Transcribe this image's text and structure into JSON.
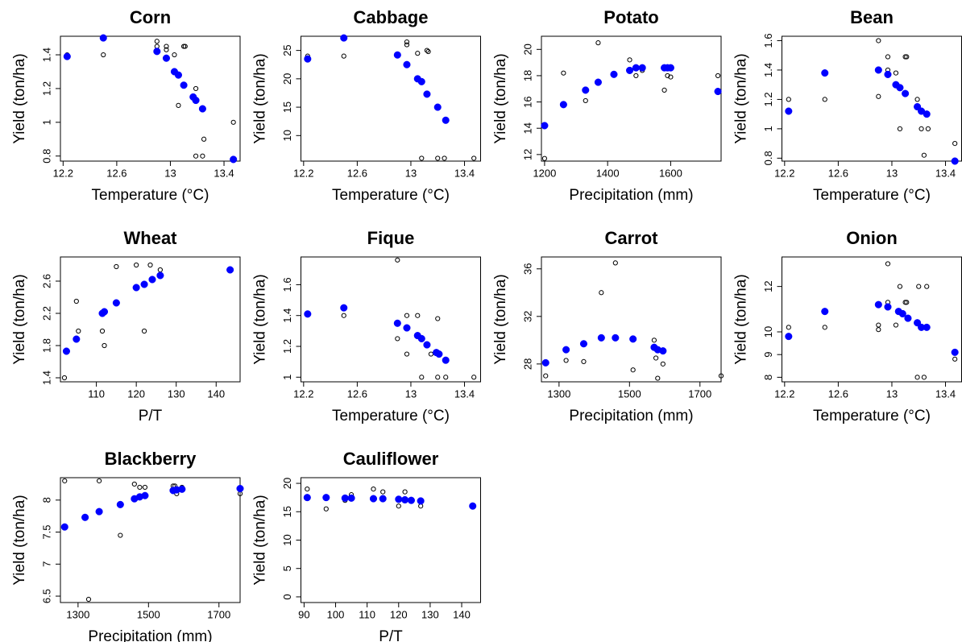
{
  "chart_data": [
    {
      "type": "scatter",
      "title": "Corn",
      "x_label": "Temperature (°C)",
      "y_label": "Yield (ton/ha)",
      "xlim": [
        12.18,
        13.52
      ],
      "xticks": [
        12.2,
        12.6,
        13.0,
        13.4
      ],
      "ylim": [
        0.77,
        1.51
      ],
      "yticks": [
        0.8,
        1.0,
        1.2,
        1.4
      ],
      "series": [
        {
          "color": "#000000",
          "marker": "open",
          "x": [
            12.23,
            12.5,
            12.9,
            12.9,
            12.97,
            12.97,
            13.03,
            13.06,
            13.1,
            13.11,
            13.19,
            13.19,
            13.24,
            13.25,
            13.47
          ],
          "values": [
            1.4,
            1.4,
            1.48,
            1.45,
            1.45,
            1.43,
            1.4,
            1.1,
            1.45,
            1.45,
            1.2,
            0.8,
            0.8,
            0.9,
            1.0
          ]
        },
        {
          "color": "#0000ff",
          "marker": "filled",
          "x": [
            12.23,
            12.5,
            12.9,
            12.97,
            13.03,
            13.06,
            13.1,
            13.17,
            13.19,
            13.24,
            13.47
          ],
          "values": [
            1.39,
            1.5,
            1.42,
            1.38,
            1.3,
            1.28,
            1.22,
            1.15,
            1.13,
            1.08,
            0.78
          ]
        }
      ]
    },
    {
      "type": "scatter",
      "title": "Cabbage",
      "x_label": "Temperature (°C)",
      "y_label": "Yield (ton/ha)",
      "xlim": [
        12.18,
        13.52
      ],
      "xticks": [
        12.2,
        12.6,
        13.0,
        13.4
      ],
      "ylim": [
        5.5,
        27.5
      ],
      "yticks": [
        10,
        15,
        20,
        25
      ],
      "series": [
        {
          "color": "#000000",
          "marker": "open",
          "x": [
            12.23,
            12.5,
            12.97,
            12.97,
            13.05,
            13.08,
            13.12,
            13.13,
            13.2,
            13.25,
            13.47
          ],
          "values": [
            24,
            24,
            26.5,
            26,
            24.5,
            6,
            25,
            24.8,
            6,
            6,
            6
          ]
        },
        {
          "color": "#0000ff",
          "marker": "filled",
          "x": [
            12.23,
            12.5,
            12.9,
            12.97,
            13.05,
            13.08,
            13.12,
            13.2,
            13.26
          ],
          "values": [
            23.5,
            27.2,
            24.2,
            22.5,
            20,
            19.5,
            17.3,
            15,
            12.7
          ]
        }
      ]
    },
    {
      "type": "scatter",
      "title": "Potato",
      "x_label": "Precipitation (mm)",
      "y_label": "Yield (ton/ha)",
      "xlim": [
        1190,
        1760
      ],
      "xticks": [
        1200,
        1400,
        1600
      ],
      "ylim": [
        11.5,
        21
      ],
      "yticks": [
        12,
        14,
        16,
        18,
        20
      ],
      "series": [
        {
          "color": "#000000",
          "marker": "open",
          "x": [
            1200,
            1260,
            1330,
            1370,
            1420,
            1470,
            1490,
            1510,
            1580,
            1590,
            1600,
            1750
          ],
          "values": [
            11.7,
            18.2,
            16.1,
            20.5,
            18.1,
            19.2,
            18.0,
            18.4,
            16.9,
            18.0,
            17.9,
            18.0
          ]
        },
        {
          "color": "#0000ff",
          "marker": "filled",
          "x": [
            1200,
            1260,
            1330,
            1370,
            1420,
            1470,
            1490,
            1510,
            1580,
            1590,
            1600,
            1750
          ],
          "values": [
            14.2,
            15.8,
            16.9,
            17.5,
            18.1,
            18.4,
            18.6,
            18.6,
            18.6,
            18.6,
            18.6,
            16.8
          ]
        }
      ]
    },
    {
      "type": "scatter",
      "title": "Bean",
      "x_label": "Temperature (°C)",
      "y_label": "Yield (ton/ha)",
      "xlim": [
        12.18,
        13.52
      ],
      "xticks": [
        12.2,
        12.6,
        13.0,
        13.4
      ],
      "ylim": [
        0.78,
        1.63
      ],
      "yticks": [
        0.8,
        1.0,
        1.2,
        1.4,
        1.6
      ],
      "series": [
        {
          "color": "#000000",
          "marker": "open",
          "x": [
            12.23,
            12.5,
            12.9,
            12.9,
            12.97,
            12.97,
            13.03,
            13.06,
            13.1,
            13.11,
            13.19,
            13.22,
            13.24,
            13.27,
            13.47
          ],
          "values": [
            1.2,
            1.2,
            1.6,
            1.22,
            1.49,
            1.4,
            1.38,
            1.0,
            1.49,
            1.49,
            1.2,
            1.0,
            0.82,
            1.0,
            0.9
          ]
        },
        {
          "color": "#0000ff",
          "marker": "filled",
          "x": [
            12.23,
            12.5,
            12.9,
            12.97,
            13.03,
            13.06,
            13.1,
            13.19,
            13.22,
            13.26,
            13.47
          ],
          "values": [
            1.12,
            1.38,
            1.4,
            1.37,
            1.3,
            1.28,
            1.24,
            1.15,
            1.12,
            1.1,
            0.78
          ]
        }
      ]
    },
    {
      "type": "scatter",
      "title": "Wheat",
      "x_label": "P/T",
      "y_label": "Yield (ton/ha)",
      "xlim": [
        101,
        146
      ],
      "xticks": [
        110,
        120,
        130,
        140
      ],
      "ylim": [
        1.35,
        2.9
      ],
      "yticks": [
        1.4,
        1.8,
        2.2,
        2.6
      ],
      "series": [
        {
          "color": "#000000",
          "marker": "open",
          "x": [
            102,
            105,
            105.5,
            111.5,
            112,
            115,
            120,
            122,
            123.5,
            126,
            143.5
          ],
          "values": [
            1.4,
            2.35,
            1.98,
            1.98,
            1.8,
            2.78,
            2.8,
            1.98,
            2.8,
            2.74,
            2.74
          ]
        },
        {
          "color": "#0000ff",
          "marker": "filled",
          "x": [
            102.5,
            105,
            111.5,
            112,
            115,
            120,
            122,
            124,
            126,
            143.5
          ],
          "values": [
            1.73,
            1.88,
            2.2,
            2.22,
            2.33,
            2.52,
            2.56,
            2.62,
            2.67,
            2.74
          ]
        }
      ]
    },
    {
      "type": "scatter",
      "title": "Fique",
      "x_label": "Temperature (°C)",
      "y_label": "Yield (ton/ha)",
      "xlim": [
        12.18,
        13.52
      ],
      "xticks": [
        12.2,
        12.6,
        13.0,
        13.4
      ],
      "ylim": [
        0.97,
        1.78
      ],
      "yticks": [
        1.0,
        1.2,
        1.4,
        1.6
      ],
      "series": [
        {
          "color": "#000000",
          "marker": "open",
          "x": [
            12.23,
            12.5,
            12.9,
            12.9,
            12.97,
            12.97,
            13.05,
            13.08,
            13.15,
            13.2,
            13.2,
            13.26,
            13.47
          ],
          "values": [
            1.41,
            1.4,
            1.76,
            1.25,
            1.15,
            1.4,
            1.4,
            1.0,
            1.15,
            1.38,
            1.0,
            1.0,
            1.0
          ]
        },
        {
          "color": "#0000ff",
          "marker": "filled",
          "x": [
            12.23,
            12.5,
            12.9,
            12.97,
            13.05,
            13.08,
            13.12,
            13.19,
            13.21,
            13.26
          ],
          "values": [
            1.41,
            1.45,
            1.35,
            1.32,
            1.27,
            1.25,
            1.21,
            1.16,
            1.15,
            1.11
          ]
        }
      ]
    },
    {
      "type": "scatter",
      "title": "Carrot",
      "x_label": "Precipitation (mm)",
      "y_label": "Yield (ton/ha)",
      "xlim": [
        1250,
        1760
      ],
      "xticks": [
        1300,
        1500,
        1700
      ],
      "ylim": [
        26.5,
        37
      ],
      "yticks": [
        28,
        32,
        36
      ],
      "series": [
        {
          "color": "#000000",
          "marker": "open",
          "x": [
            1262,
            1320,
            1370,
            1420,
            1460,
            1510,
            1570,
            1575,
            1580,
            1595,
            1760
          ],
          "values": [
            27,
            28.3,
            28.2,
            34,
            36.5,
            27.5,
            30,
            28.5,
            26.8,
            28,
            27
          ]
        },
        {
          "color": "#0000ff",
          "marker": "filled",
          "x": [
            1262,
            1320,
            1370,
            1420,
            1460,
            1510,
            1570,
            1580,
            1595
          ],
          "values": [
            28.1,
            29.2,
            29.7,
            30.2,
            30.2,
            30.1,
            29.4,
            29.2,
            29.1
          ]
        }
      ]
    },
    {
      "type": "scatter",
      "title": "Onion",
      "x_label": "Temperature (°C)",
      "y_label": "Yield (ton/ha)",
      "xlim": [
        12.18,
        13.52
      ],
      "xticks": [
        12.2,
        12.6,
        13.0,
        13.4
      ],
      "ylim": [
        7.8,
        13.3
      ],
      "yticks": [
        8,
        9,
        10,
        12
      ],
      "series": [
        {
          "color": "#000000",
          "marker": "open",
          "x": [
            12.23,
            12.5,
            12.9,
            12.9,
            12.97,
            12.97,
            13.03,
            13.06,
            13.1,
            13.11,
            13.19,
            13.2,
            13.24,
            13.26,
            13.47
          ],
          "values": [
            10.2,
            10.2,
            10.1,
            10.3,
            13,
            11.3,
            10.3,
            12,
            11.3,
            11.3,
            8,
            12,
            8,
            12,
            8.8
          ]
        },
        {
          "color": "#0000ff",
          "marker": "filled",
          "x": [
            12.23,
            12.5,
            12.9,
            12.97,
            13.05,
            13.08,
            13.12,
            13.19,
            13.22,
            13.26,
            13.47
          ],
          "values": [
            9.8,
            10.9,
            11.2,
            11.1,
            10.9,
            10.8,
            10.6,
            10.4,
            10.2,
            10.2,
            9.1
          ]
        }
      ]
    },
    {
      "type": "scatter",
      "title": "Blackberry",
      "x_label": "Precipitation (mm)",
      "y_label": "Yield (ton/ha)",
      "xlim": [
        1250,
        1760
      ],
      "xticks": [
        1300,
        1500,
        1700
      ],
      "ylim": [
        6.4,
        8.35
      ],
      "yticks": [
        6.5,
        7.0,
        7.5,
        8.0
      ],
      "series": [
        {
          "color": "#000000",
          "marker": "open",
          "x": [
            1262,
            1330,
            1360,
            1420,
            1460,
            1475,
            1490,
            1570,
            1575,
            1580,
            1595,
            1760
          ],
          "values": [
            8.3,
            6.45,
            8.3,
            7.45,
            8.25,
            8.2,
            8.2,
            8.22,
            8.22,
            8.1,
            8.2,
            8.1
          ]
        },
        {
          "color": "#0000ff",
          "marker": "filled",
          "x": [
            1262,
            1320,
            1360,
            1420,
            1460,
            1475,
            1490,
            1570,
            1580,
            1595,
            1760
          ],
          "values": [
            7.58,
            7.73,
            7.82,
            7.93,
            8.02,
            8.05,
            8.07,
            8.15,
            8.16,
            8.17,
            8.18
          ]
        }
      ]
    },
    {
      "type": "scatter",
      "title": "Cauliflower",
      "x_label": "P/T",
      "y_label": "Yield (ton/ha)",
      "xlim": [
        89,
        146
      ],
      "xticks": [
        90,
        100,
        110,
        120,
        130,
        140
      ],
      "ylim": [
        -1,
        21
      ],
      "yticks": [
        0,
        5,
        10,
        15,
        20
      ],
      "series": [
        {
          "color": "#000000",
          "marker": "open",
          "x": [
            91,
            97,
            103,
            105,
            112,
            115,
            120,
            122,
            124,
            127,
            143.5
          ],
          "values": [
            19,
            15.5,
            17,
            18,
            19,
            18.5,
            16,
            18.5,
            17,
            16,
            16
          ]
        },
        {
          "color": "#0000ff",
          "marker": "filled",
          "x": [
            91,
            97,
            103,
            105,
            112,
            115,
            120,
            122,
            124,
            127,
            143.5
          ],
          "values": [
            17.5,
            17.5,
            17.4,
            17.4,
            17.3,
            17.3,
            17.2,
            17.1,
            17.0,
            16.9,
            16.0
          ]
        }
      ]
    }
  ]
}
